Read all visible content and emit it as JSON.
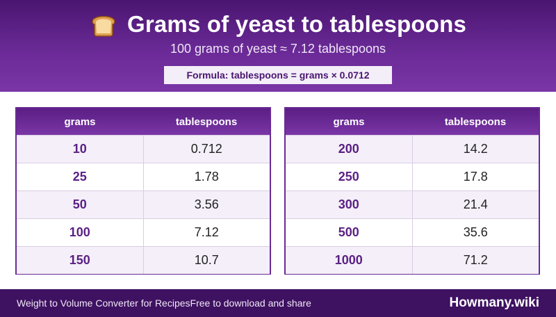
{
  "header": {
    "icon": "bread-icon",
    "title": "Grams of yeast to tablespoons",
    "subtitle": "100 grams of yeast ≈ 7.12 tablespoons",
    "formula": "Formula: tablespoons = grams × 0.0712"
  },
  "colors": {
    "header_dark": "#4a1570",
    "header_light": "#7a35a6",
    "accent_text": "#5a1f84",
    "footer": "#3e1161"
  },
  "tables": {
    "left": {
      "headers": [
        "grams",
        "tablespoons"
      ],
      "rows": [
        [
          "10",
          "0.712"
        ],
        [
          "25",
          "1.78"
        ],
        [
          "50",
          "3.56"
        ],
        [
          "100",
          "7.12"
        ],
        [
          "150",
          "10.7"
        ]
      ]
    },
    "right": {
      "headers": [
        "grams",
        "tablespoons"
      ],
      "rows": [
        [
          "200",
          "14.2"
        ],
        [
          "250",
          "17.8"
        ],
        [
          "300",
          "21.4"
        ],
        [
          "500",
          "35.6"
        ],
        [
          "1000",
          "71.2"
        ]
      ]
    }
  },
  "footer": {
    "left_text": "Weight to Volume Converter for Recipes",
    "left_subtext": "Free to download and share",
    "brand": "Howmany.wiki"
  }
}
